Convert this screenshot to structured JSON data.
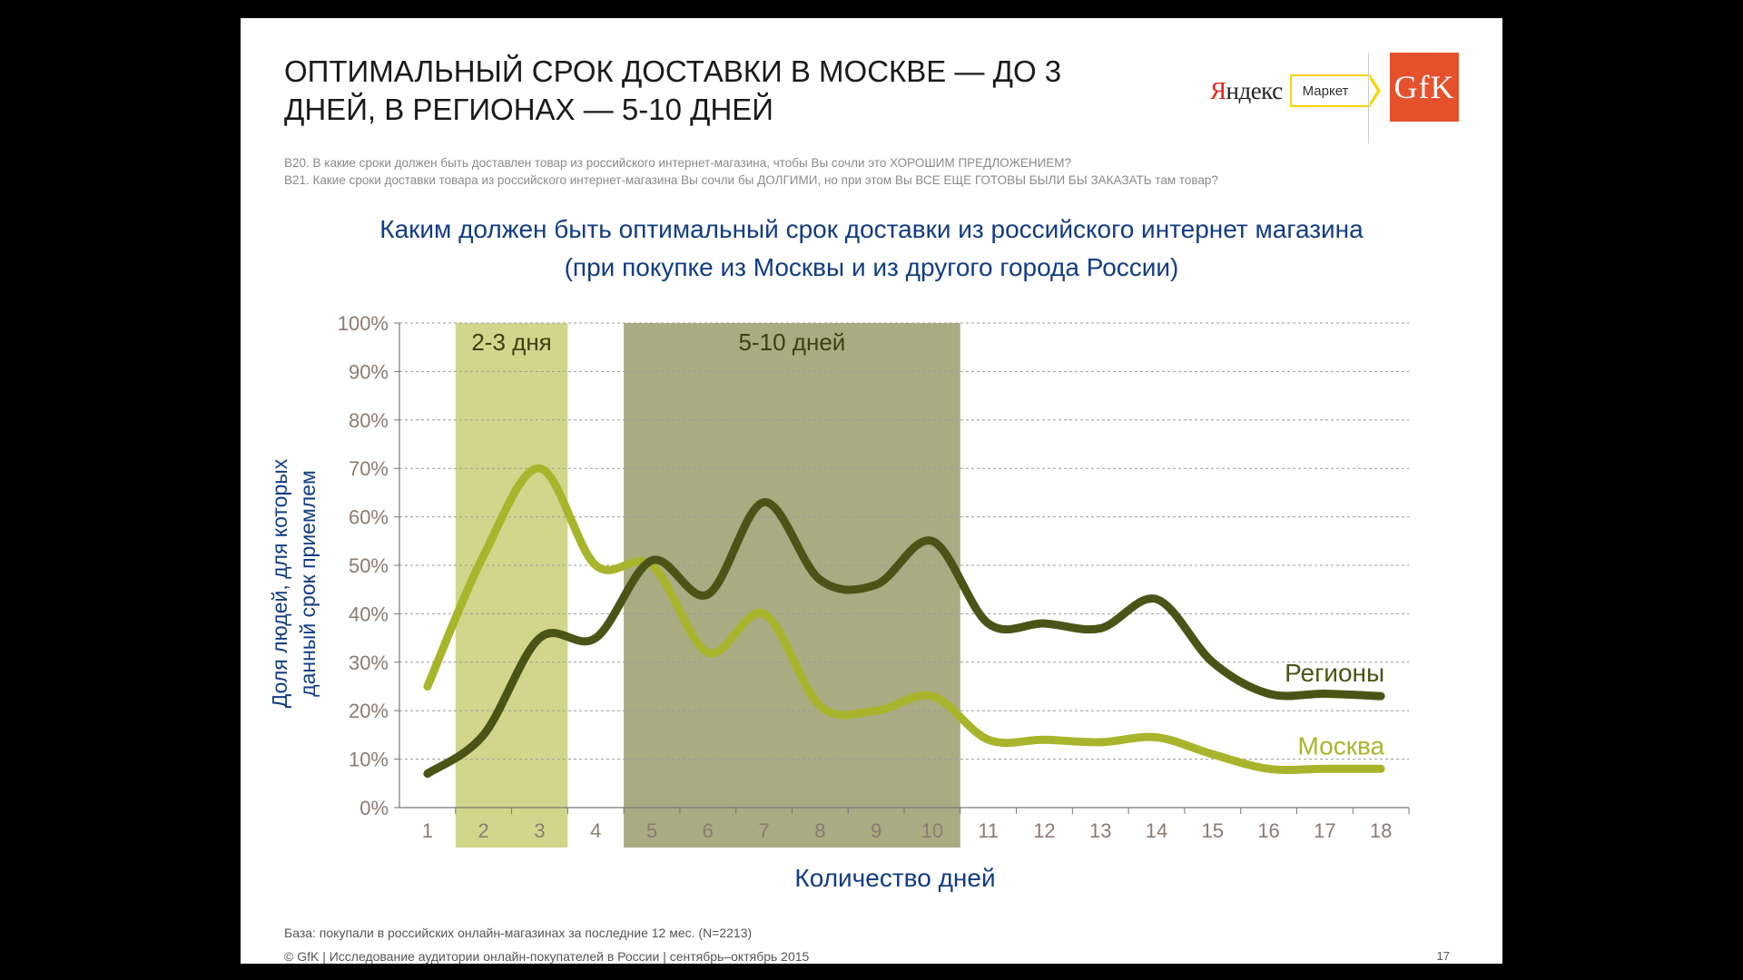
{
  "slide": {
    "title": "ОПТИМАЛЬНЫЙ СРОК ДОСТАВКИ В МОСКВЕ — ДО 3 ДНЕЙ, В РЕГИОНАХ — 5-10 ДНЕЙ",
    "questions": [
      "B20. В какие сроки должен быть доставлен товар из российского интернет-магазина, чтобы Вы сочли это ХОРОШИМ ПРЕДЛОЖЕНИЕМ?",
      "B21. Какие сроки доставки товара из российского интернет-магазина Вы сочли бы ДОЛГИМИ, но при этом Вы ВСЕ ЕЩЕ ГОТОВЫ БЫЛИ БЫ ЗАКАЗАТЬ там товар?"
    ],
    "logos": {
      "yandex_first": "Я",
      "yandex_rest": "ндекс",
      "market": "Маркет",
      "gfk": "GfK"
    },
    "base_note": "База: покупали в российских онлайн-магазинах за последние 12 мес. (N=2213)",
    "footer": "© GfK | Исследование аудитории онлайн-покупателей в России | сентябрь–октябрь 2015",
    "page_number": "17"
  },
  "chart_data": {
    "type": "line",
    "title": [
      "Каким должен быть оптимальный срок доставки из российского интернет магазина",
      "(при покупке из Москвы и из другого города России)"
    ],
    "xlabel": "Количество дней",
    "ylabel": [
      "Доля людей, для которых",
      "данный срок приемлем"
    ],
    "x": [
      1,
      2,
      3,
      4,
      5,
      6,
      7,
      8,
      9,
      10,
      11,
      12,
      13,
      14,
      15,
      16,
      17,
      18
    ],
    "ylim": [
      0,
      100
    ],
    "yticks": [
      "0%",
      "10%",
      "20%",
      "30%",
      "40%",
      "50%",
      "60%",
      "70%",
      "80%",
      "90%",
      "100%"
    ],
    "grid": true,
    "series": [
      {
        "name": "Москва",
        "color": "#a8b52c",
        "values": [
          25,
          52,
          70,
          50,
          50,
          32,
          40,
          21,
          20,
          23,
          14,
          14,
          13.5,
          14.5,
          11,
          8,
          8,
          8
        ]
      },
      {
        "name": "Регионы",
        "color": "#4b5416",
        "values": [
          7,
          15,
          35,
          35,
          51,
          44,
          63,
          47,
          46,
          55,
          38,
          38,
          37,
          43,
          30,
          23.5,
          23.5,
          23
        ]
      }
    ],
    "highlight_bands": [
      {
        "label": "2-3 дня",
        "from": 2,
        "to": 3,
        "color": "#d2d68c",
        "label_color": "#3a4111"
      },
      {
        "label": "5-10 дней",
        "from": 5,
        "to": 10,
        "color": "#a9ab82",
        "label_color": "#3a4111"
      }
    ]
  }
}
